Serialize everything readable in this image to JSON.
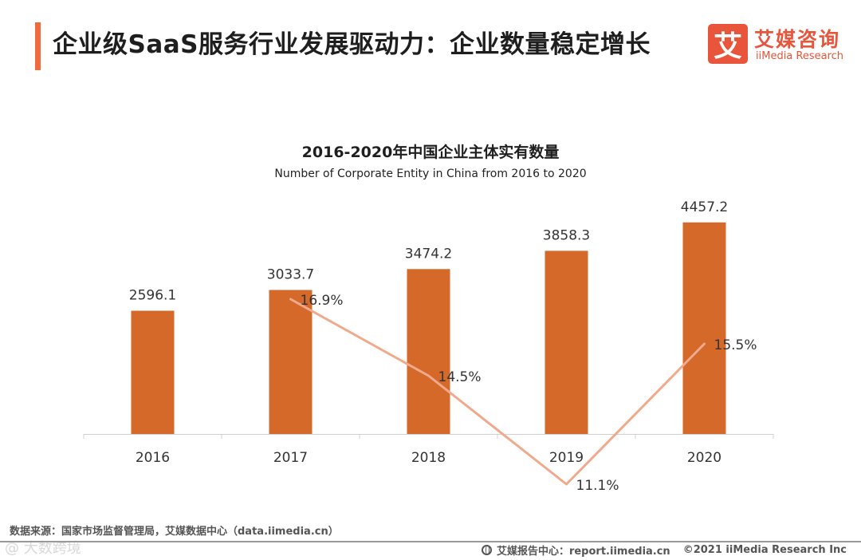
{
  "header": {
    "title": "企业级SaaS服务行业发展驱动力：企业数量稳定增长",
    "accent_color": "#ef6a3c"
  },
  "logo": {
    "mark": "艾",
    "name_cn": "艾媒咨询",
    "name_en": "iiMedia Research",
    "color": "#e8553a"
  },
  "chart_data": {
    "type": "bar",
    "title": "2016-2020年中国企业主体实有数量",
    "subtitle": "Number of Corporate Entity in China from 2016 to 2020",
    "categories": [
      "2016",
      "2017",
      "2018",
      "2019",
      "2020"
    ],
    "series": [
      {
        "type": "bar",
        "values": [
          2596.1,
          3033.7,
          3474.2,
          3858.3,
          4457.2
        ],
        "labels": [
          "2596.1",
          "3033.7",
          "3474.2",
          "3858.3",
          "4457.2"
        ],
        "color": "#d4692a"
      },
      {
        "type": "line",
        "values": [
          null,
          16.9,
          14.5,
          11.1,
          15.5
        ],
        "labels": [
          "",
          "16.9%",
          "14.5%",
          "11.1%",
          "15.5%"
        ],
        "unit": "%",
        "color": "#f0a98a"
      }
    ],
    "grid": false,
    "legend": "none"
  },
  "footer": {
    "source": "数据来源：国家市场监督管理局，艾媒数据中心（data.iimedia.cn）",
    "watermark": "@ 大数跨境",
    "report_center": "艾媒报告中心：report.iimedia.cn",
    "copyright": "©2021 iiMedia Research Inc"
  }
}
